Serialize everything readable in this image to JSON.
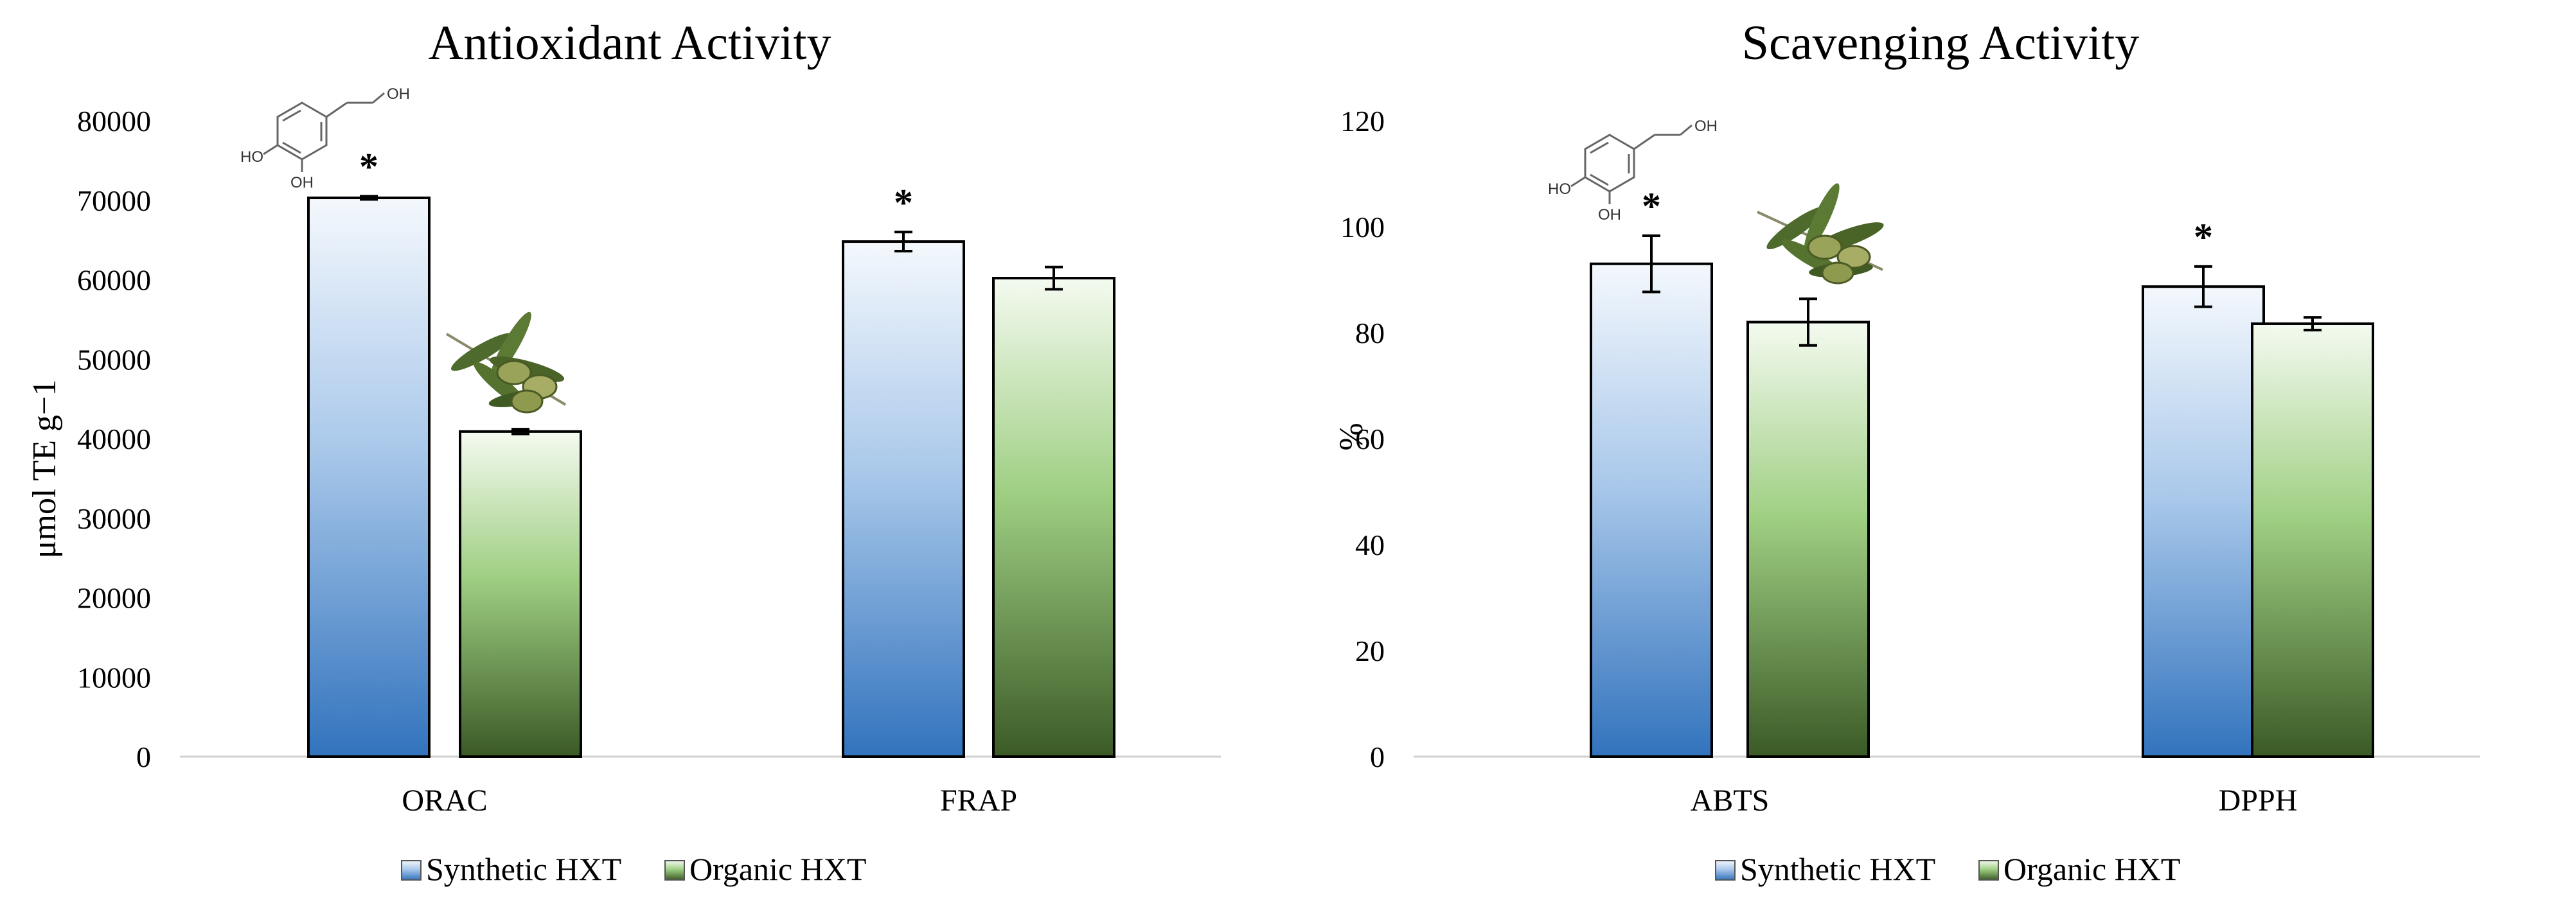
{
  "colors": {
    "synthetic_top": "#f4f8fd",
    "synthetic_mid": "#a9c8ea",
    "synthetic_bottom": "#3273bd",
    "organic_top": "#f4faf0",
    "organic_mid": "#9fcf83",
    "organic_bottom": "#3b5a26"
  },
  "icons": [
    "hydroxytyrosol-molecule-icon",
    "olive-branch-icon"
  ],
  "chart_data": [
    {
      "type": "bar",
      "title": "Antioxidant Activity",
      "ylabel": "μmol TE g−1",
      "xlabel": "",
      "categories": [
        "ORAC",
        "FRAP"
      ],
      "ylim": [
        0,
        80000
      ],
      "yticks": [
        0,
        10000,
        20000,
        30000,
        40000,
        50000,
        60000,
        70000,
        80000
      ],
      "series": [
        {
          "name": "Synthetic HXT",
          "values": [
            70300,
            64800
          ],
          "errors": [
            200,
            1200
          ]
        },
        {
          "name": "Organic HXT",
          "values": [
            40900,
            60200
          ],
          "errors": [
            300,
            1400
          ]
        }
      ],
      "annotations": [
        {
          "category": "ORAC",
          "series": "Synthetic HXT",
          "text": "*"
        },
        {
          "category": "FRAP",
          "series": "Synthetic HXT",
          "text": "*"
        }
      ],
      "legend": "bottom",
      "grid": false
    },
    {
      "type": "bar",
      "title": "Scavenging Activity",
      "ylabel": "%",
      "xlabel": "",
      "categories": [
        "ABTS",
        "DPPH"
      ],
      "ylim": [
        0,
        120
      ],
      "yticks": [
        0,
        20,
        40,
        60,
        80,
        100,
        120
      ],
      "series": [
        {
          "name": "Synthetic HXT",
          "values": [
            93,
            88.7
          ],
          "errors": [
            5.3,
            3.8
          ]
        },
        {
          "name": "Organic HXT",
          "values": [
            82,
            81.7
          ],
          "errors": [
            4.4,
            1.2
          ]
        }
      ],
      "annotations": [
        {
          "category": "ABTS",
          "series": "Synthetic HXT",
          "text": "*"
        },
        {
          "category": "DPPH",
          "series": "Synthetic HXT",
          "text": "*"
        }
      ],
      "legend": "bottom",
      "grid": false
    }
  ]
}
